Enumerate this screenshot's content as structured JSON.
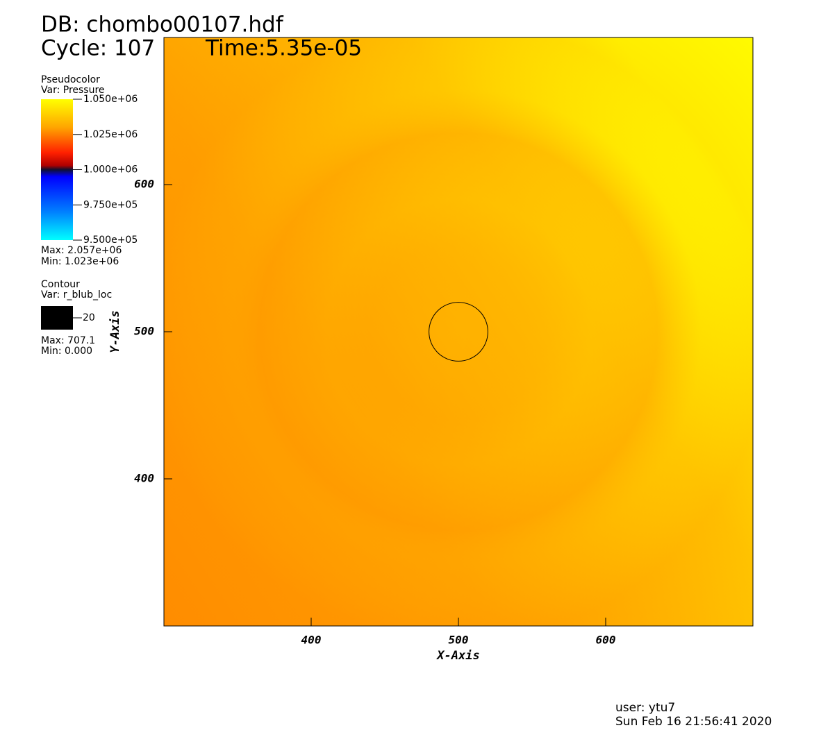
{
  "chart_data": {
    "type": "pseudocolor",
    "db": "DB: chombo00107.hdf",
    "cycle": "Cycle: 107",
    "time": "Time:5.35e-05",
    "x_label": "X-Axis",
    "y_label": "Y-Axis",
    "xlim": [
      300,
      700
    ],
    "ylim": [
      300,
      700
    ],
    "xticks": [
      400,
      500,
      600
    ],
    "yticks": [
      400,
      500,
      600
    ],
    "pseudocolor": {
      "title": "Pseudocolor",
      "var": "Var: Pressure",
      "range": [
        950000,
        1050000
      ],
      "ticks": [
        {
          "value": 1050000,
          "label": "1.050e+06"
        },
        {
          "value": 1025000,
          "label": "1.025e+06"
        },
        {
          "value": 1000000,
          "label": "1.000e+06"
        },
        {
          "value": 975000,
          "label": "9.750e+05"
        },
        {
          "value": 950000,
          "label": "9.500e+05"
        }
      ],
      "max": "Max: 2.057e+06",
      "min": "Min:  1.023e+06"
    },
    "contour": {
      "title": "Contour",
      "var": "Var: r_blub_loc",
      "level": 20,
      "center": [
        500,
        500
      ],
      "color": "#000000",
      "max": "Max: 707.1",
      "min": "Min: 0.000"
    },
    "user": "user: ytu7",
    "date": "Sun Feb 16 21:56:41 2020"
  }
}
